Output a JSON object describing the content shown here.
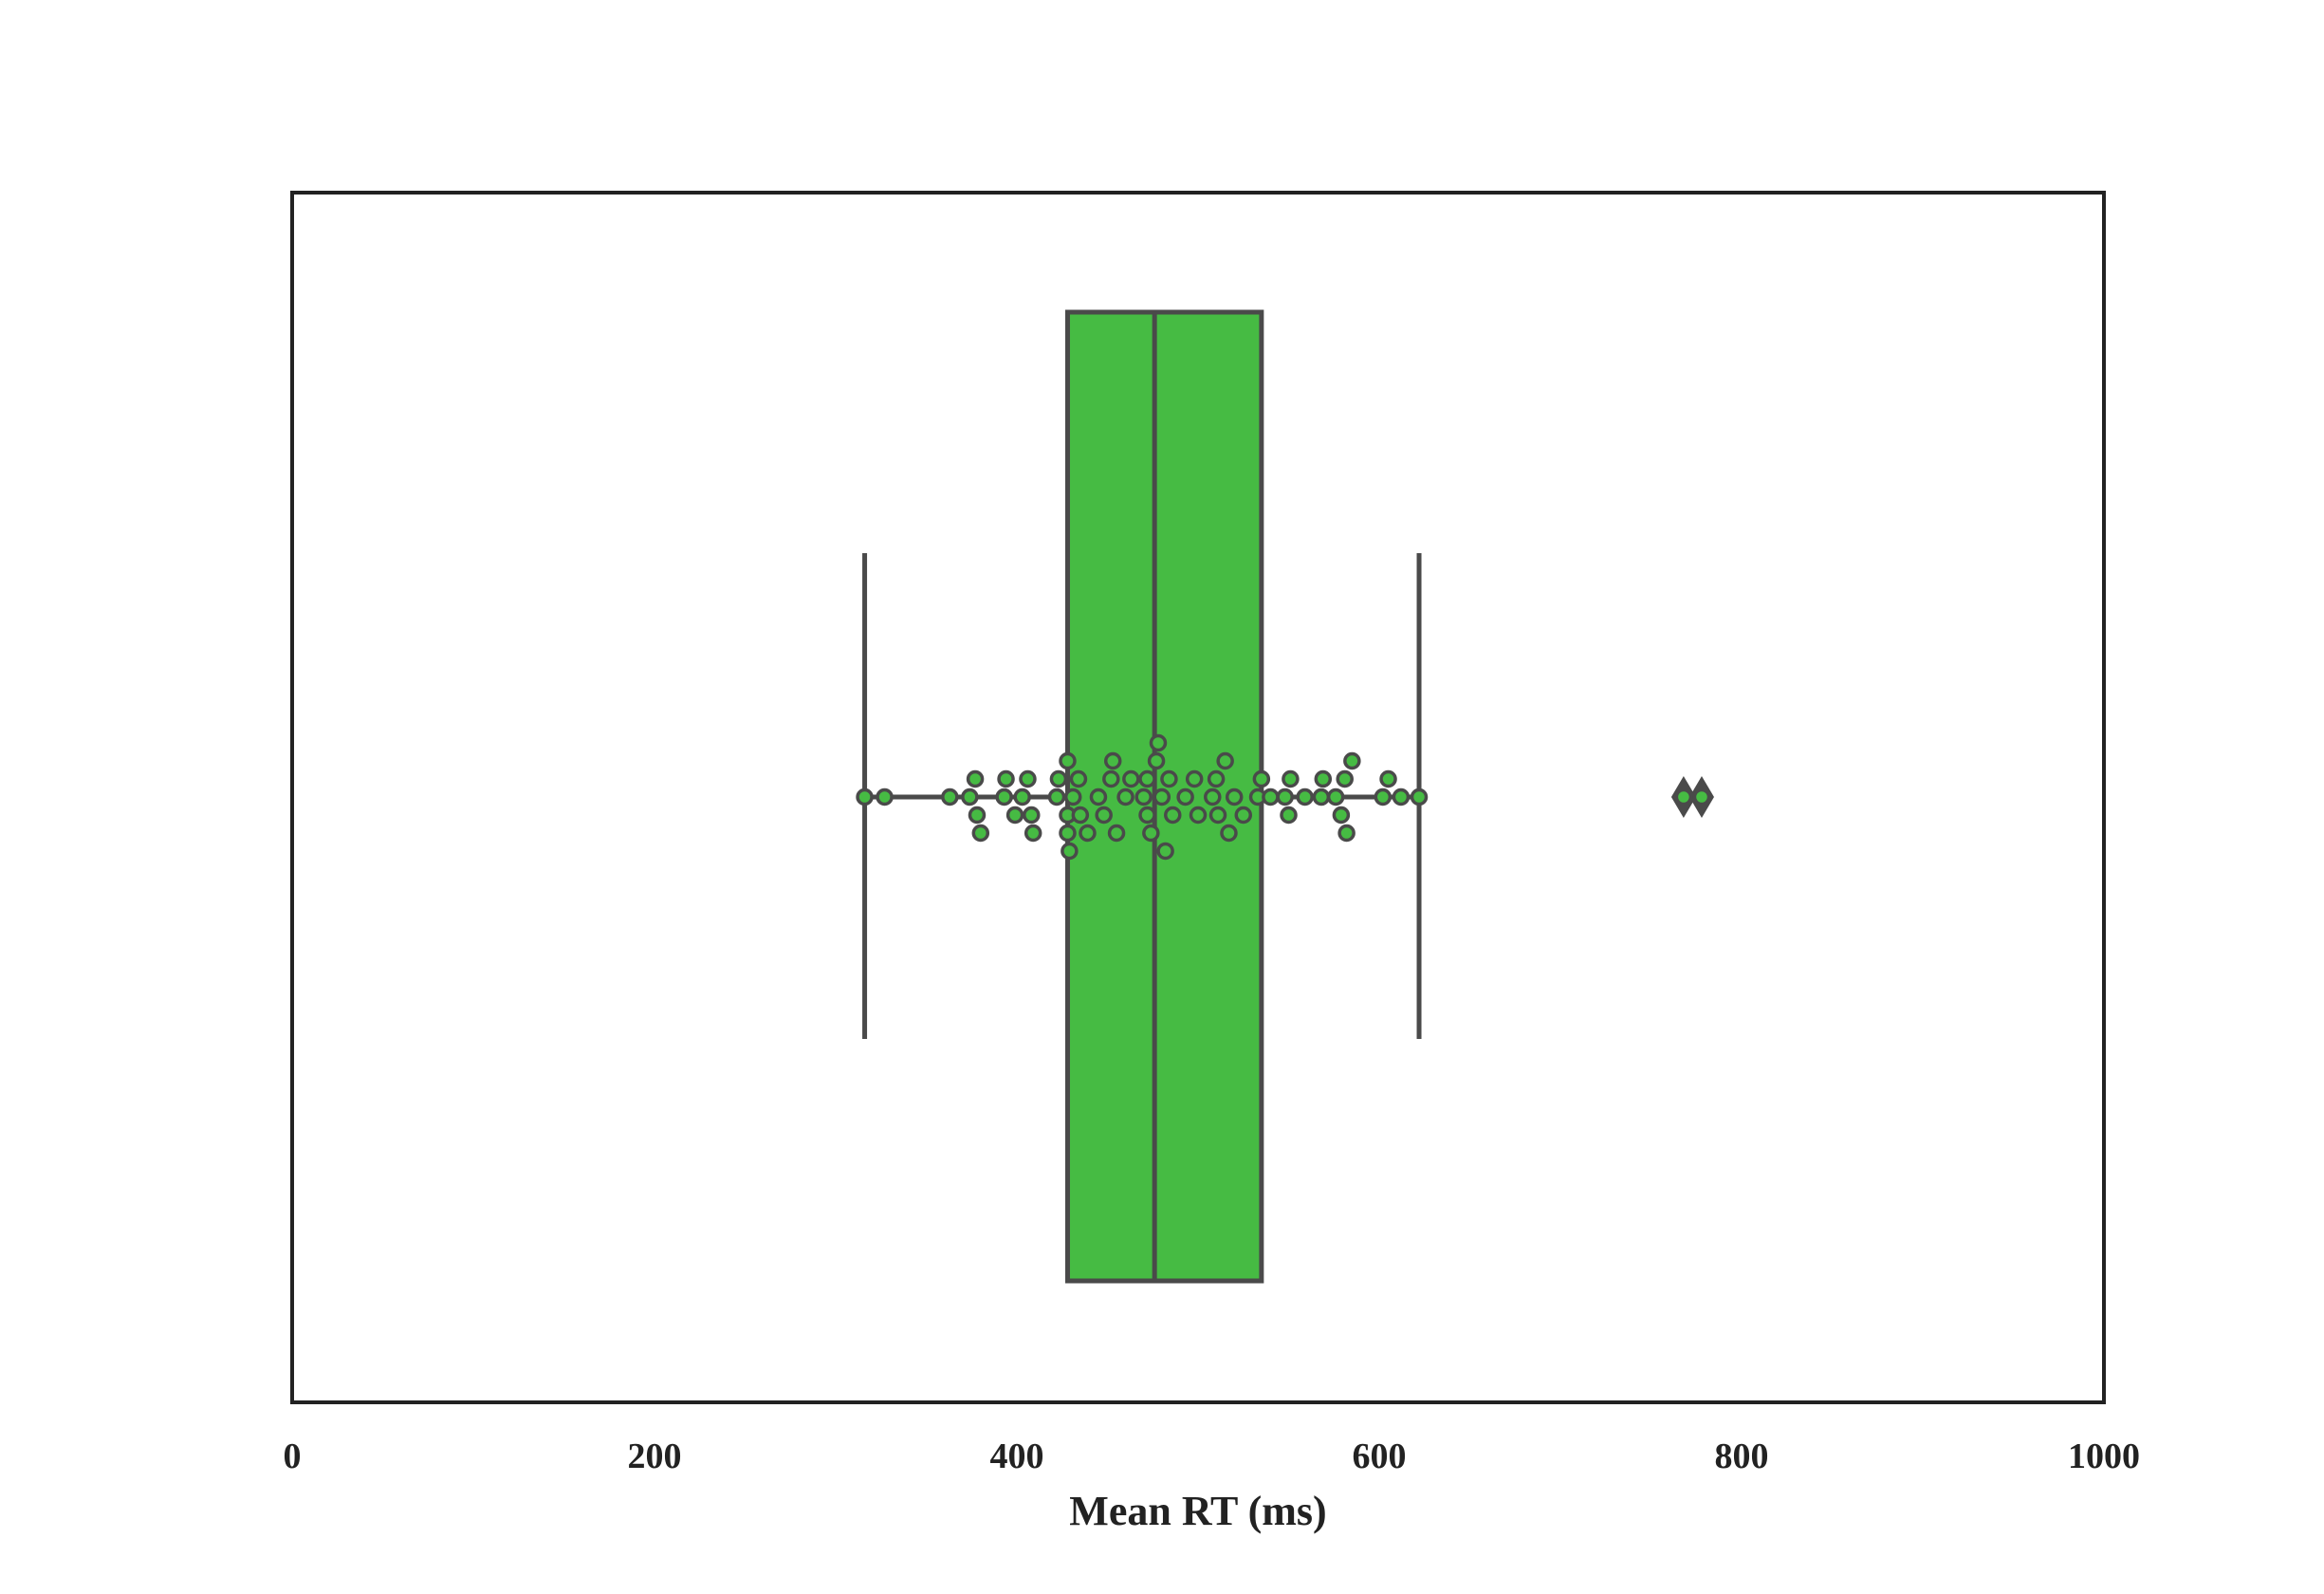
{
  "chart_data": {
    "type": "box",
    "orientation": "horizontal",
    "title": "",
    "xlabel": "Mean RT (ms)",
    "ylabel": "",
    "xlim": [
      0,
      1000
    ],
    "xticks": [
      0,
      200,
      400,
      600,
      800,
      1000
    ],
    "xtick_labels": [
      "0",
      "200",
      "400",
      "600",
      "800",
      "1000"
    ],
    "grid": false,
    "legend": "none",
    "colors": {
      "box_fill": "#46BB43",
      "line": "#4A4A4A",
      "frame": "#222222"
    },
    "box": {
      "whisker_low": 316,
      "q1": 428,
      "median": 476,
      "q3": 535,
      "whisker_high": 622,
      "outliers": [
        768,
        778
      ]
    },
    "points": [
      {
        "x": 316,
        "level": 0
      },
      {
        "x": 327,
        "level": 0
      },
      {
        "x": 363,
        "level": 0
      },
      {
        "x": 374,
        "level": 0
      },
      {
        "x": 377,
        "level": -1
      },
      {
        "x": 378,
        "level": 1
      },
      {
        "x": 380,
        "level": 2
      },
      {
        "x": 393,
        "level": 0
      },
      {
        "x": 394,
        "level": -1
      },
      {
        "x": 399,
        "level": 1
      },
      {
        "x": 403,
        "level": 0
      },
      {
        "x": 406,
        "level": -1
      },
      {
        "x": 408,
        "level": 1
      },
      {
        "x": 409,
        "level": 2
      },
      {
        "x": 422,
        "level": 0
      },
      {
        "x": 423,
        "level": -1
      },
      {
        "x": 428,
        "level": 1
      },
      {
        "x": 428,
        "level": -2
      },
      {
        "x": 428,
        "level": 2
      },
      {
        "x": 429,
        "level": 3
      },
      {
        "x": 431,
        "level": 0
      },
      {
        "x": 434,
        "level": -1
      },
      {
        "x": 435,
        "level": 1
      },
      {
        "x": 439,
        "level": 2
      },
      {
        "x": 445,
        "level": 0
      },
      {
        "x": 448,
        "level": 1
      },
      {
        "x": 452,
        "level": -1
      },
      {
        "x": 453,
        "level": -2
      },
      {
        "x": 455,
        "level": 2
      },
      {
        "x": 460,
        "level": 0
      },
      {
        "x": 463,
        "level": -1
      },
      {
        "x": 470,
        "level": 0
      },
      {
        "x": 472,
        "level": -1
      },
      {
        "x": 472,
        "level": 1
      },
      {
        "x": 474,
        "level": 2
      },
      {
        "x": 477,
        "level": -2
      },
      {
        "x": 478,
        "level": -3
      },
      {
        "x": 480,
        "level": 0
      },
      {
        "x": 482,
        "level": 3
      },
      {
        "x": 484,
        "level": -1
      },
      {
        "x": 486,
        "level": 1
      },
      {
        "x": 493,
        "level": 0
      },
      {
        "x": 498,
        "level": -1
      },
      {
        "x": 500,
        "level": 1
      },
      {
        "x": 508,
        "level": 0
      },
      {
        "x": 510,
        "level": -1
      },
      {
        "x": 511,
        "level": 1
      },
      {
        "x": 515,
        "level": -2
      },
      {
        "x": 517,
        "level": 2
      },
      {
        "x": 520,
        "level": 0
      },
      {
        "x": 525,
        "level": 1
      },
      {
        "x": 533,
        "level": 0
      },
      {
        "x": 535,
        "level": -1
      },
      {
        "x": 540,
        "level": 0
      },
      {
        "x": 548,
        "level": 0
      },
      {
        "x": 550,
        "level": 1
      },
      {
        "x": 551,
        "level": -1
      },
      {
        "x": 559,
        "level": 0
      },
      {
        "x": 568,
        "level": 0
      },
      {
        "x": 569,
        "level": -1
      },
      {
        "x": 576,
        "level": 0
      },
      {
        "x": 579,
        "level": 1
      },
      {
        "x": 581,
        "level": -1
      },
      {
        "x": 582,
        "level": 2
      },
      {
        "x": 585,
        "level": -2
      },
      {
        "x": 602,
        "level": 0
      },
      {
        "x": 605,
        "level": -1
      },
      {
        "x": 612,
        "level": 0
      },
      {
        "x": 622,
        "level": 0
      },
      {
        "x": 768,
        "level": 0
      },
      {
        "x": 778,
        "level": 0
      }
    ]
  }
}
